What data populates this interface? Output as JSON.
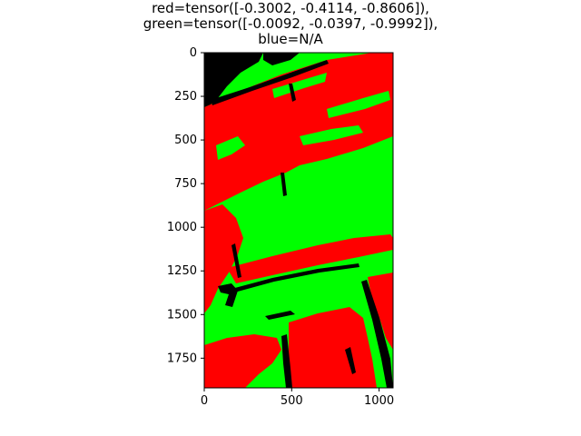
{
  "chart_data": {
    "type": "heatmap",
    "title_lines": [
      "red=tensor([-0.3002, -0.4114, -0.8606]),",
      "green=tensor([-0.0092, -0.0397, -0.9992]),",
      "blue=N/A"
    ],
    "xlabel": "",
    "ylabel": "",
    "xlim": [
      0,
      1080
    ],
    "ylim": [
      1920,
      0
    ],
    "x_ticks": [
      0,
      500,
      1000
    ],
    "y_ticks": [
      0,
      250,
      500,
      750,
      1000,
      1250,
      1500,
      1750
    ],
    "grid": false,
    "colors": {
      "red": "#ff0000",
      "green": "#00ff00",
      "black": "#000000"
    }
  }
}
